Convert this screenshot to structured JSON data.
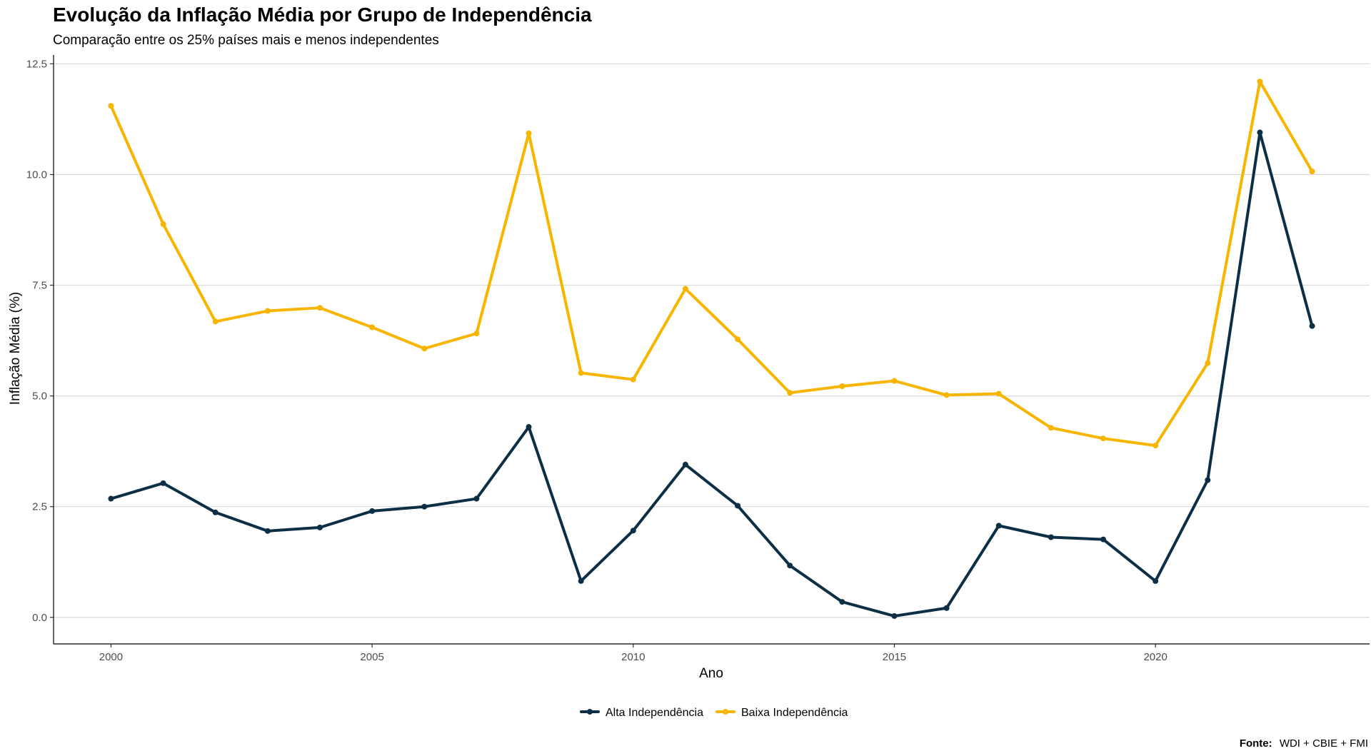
{
  "chart_data": {
    "type": "line",
    "title": "Evolução da Inflação Média por Grupo de Independência",
    "subtitle": "Comparação entre os 25% países mais e menos independentes",
    "xlabel": "Ano",
    "ylabel": "Inflação Média (%)",
    "xlim": [
      1998.9,
      2024.1
    ],
    "ylim": [
      -0.6,
      12.7
    ],
    "x_ticks": [
      2000,
      2005,
      2010,
      2015,
      2020
    ],
    "x_tick_labels": [
      "2000",
      "2005",
      "2010",
      "2015",
      "2020"
    ],
    "y_ticks": [
      0.0,
      2.5,
      5.0,
      7.5,
      10.0,
      12.5
    ],
    "y_tick_labels": [
      "0.0",
      "2.5",
      "5.0",
      "7.5",
      "10.0",
      "12.5"
    ],
    "grid": "horizontal major",
    "legend_position": "bottom",
    "x": [
      2000,
      2001,
      2002,
      2003,
      2004,
      2005,
      2006,
      2007,
      2008,
      2009,
      2010,
      2011,
      2012,
      2013,
      2014,
      2015,
      2016,
      2017,
      2018,
      2019,
      2020,
      2021,
      2022,
      2023
    ],
    "series": [
      {
        "name": "Alta Independência",
        "color": "#0d2f45",
        "values": [
          2.68,
          3.03,
          2.37,
          1.95,
          2.03,
          2.4,
          2.5,
          2.68,
          4.3,
          0.82,
          1.96,
          3.45,
          2.52,
          1.17,
          0.35,
          0.03,
          0.21,
          2.07,
          1.81,
          1.76,
          0.82,
          3.1,
          10.95,
          6.58
        ]
      },
      {
        "name": "Baixa Independência",
        "color": "#f7b500",
        "values": [
          11.55,
          8.88,
          6.68,
          6.92,
          6.99,
          6.55,
          6.07,
          6.41,
          10.93,
          5.52,
          5.37,
          7.42,
          6.28,
          5.07,
          5.22,
          5.34,
          5.02,
          5.05,
          4.28,
          4.04,
          3.88,
          5.74,
          12.1,
          10.07
        ]
      }
    ],
    "caption_label": "Fonte:",
    "caption_text": "WDI + CBIE + FMI"
  }
}
